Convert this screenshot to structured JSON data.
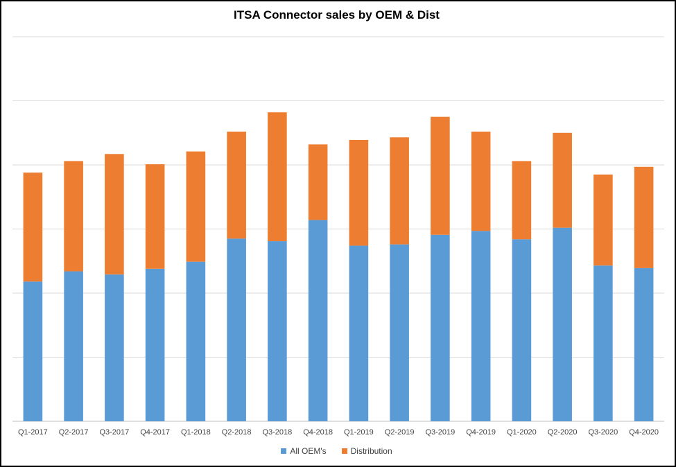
{
  "chart_data": {
    "type": "bar",
    "stacked": true,
    "title": "ITSA Connector sales by OEM & Dist",
    "xlabel": "",
    "ylabel": "",
    "ylim": [
      0,
      600
    ],
    "grid": true,
    "legend_position": "bottom",
    "categories": [
      "Q1-2017",
      "Q2-2017",
      "Q3-2017",
      "Q4-2017",
      "Q1-2018",
      "Q2-2018",
      "Q3-2018",
      "Q4-2018",
      "Q1-2019",
      "Q2-2019",
      "Q3-2019",
      "Q4-2019",
      "Q1-2020",
      "Q2-2020",
      "Q3-2020",
      "Q4-2020"
    ],
    "series": [
      {
        "name": "All OEM's",
        "color": "#5B9BD5",
        "values": [
          218,
          234,
          229,
          238,
          249,
          285,
          281,
          314,
          274,
          276,
          291,
          297,
          284,
          302,
          243,
          239
        ]
      },
      {
        "name": "Distribution",
        "color": "#ED7D31",
        "values": [
          170,
          172,
          188,
          163,
          172,
          167,
          201,
          118,
          165,
          167,
          184,
          155,
          122,
          148,
          142,
          158
        ]
      }
    ]
  }
}
